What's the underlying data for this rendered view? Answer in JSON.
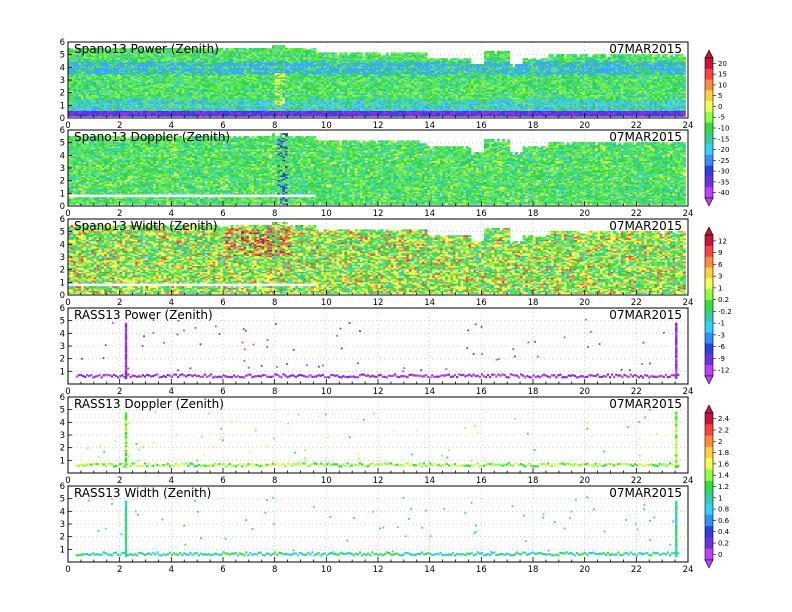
{
  "chart_data": [
    {
      "type": "heatmap",
      "title": "Spano13 Power (Zenith)",
      "date": "07MAR2015",
      "xlim": [
        0,
        24
      ],
      "ylim": [
        0,
        6
      ],
      "xticks": [
        "0",
        "2",
        "4",
        "6",
        "8",
        "10",
        "12",
        "14",
        "16",
        "18",
        "20",
        "22",
        "24"
      ],
      "yticks": [
        "0",
        "1",
        "2",
        "3",
        "4",
        "5",
        "6"
      ],
      "grid": true,
      "pattern": "profiler-power",
      "colorbar": {
        "ticks": [
          "20",
          "15",
          "10",
          "5",
          "0",
          "-5",
          "-10",
          "-15",
          "-20",
          "-25",
          "-30",
          "-35",
          "-40"
        ],
        "colors": [
          "#c8143c",
          "#ff4040",
          "#ff8c3c",
          "#ffd040",
          "#f0ff50",
          "#90ff40",
          "#30e040",
          "#30d0a0",
          "#30d0ff",
          "#3090ff",
          "#3040e0",
          "#7030e0",
          "#c040ff"
        ]
      }
    },
    {
      "type": "heatmap",
      "title": "Spano13 Doppler (Zenith)",
      "date": "07MAR2015",
      "xlim": [
        0,
        24
      ],
      "ylim": [
        0,
        6
      ],
      "xticks": [
        "0",
        "2",
        "4",
        "6",
        "8",
        "10",
        "12",
        "14",
        "16",
        "18",
        "20",
        "22",
        "24"
      ],
      "yticks": [
        "0",
        "1",
        "2",
        "3",
        "4",
        "5",
        "6"
      ],
      "grid": true,
      "pattern": "profiler-doppler"
    },
    {
      "type": "heatmap",
      "title": "Spano13 Width (Zenith)",
      "date": "07MAR2015",
      "xlim": [
        0,
        24
      ],
      "ylim": [
        0,
        6
      ],
      "xticks": [
        "0",
        "2",
        "4",
        "6",
        "8",
        "10",
        "12",
        "14",
        "16",
        "18",
        "20",
        "22",
        "24"
      ],
      "yticks": [
        "0",
        "1",
        "2",
        "3",
        "4",
        "5",
        "6"
      ],
      "grid": true,
      "pattern": "profiler-width",
      "colorbar": {
        "ticks": [
          "12",
          "9",
          "6",
          "3",
          "1",
          "0.2",
          "-0.2",
          "-1",
          "-3",
          "-6",
          "-9",
          "-12"
        ],
        "colors": [
          "#c8143c",
          "#ff4040",
          "#ff8c3c",
          "#ffd040",
          "#f0ff50",
          "#90ff40",
          "#30e040",
          "#30d0a0",
          "#30d0ff",
          "#3090ff",
          "#3040e0",
          "#7030e0",
          "#c040ff"
        ]
      }
    },
    {
      "type": "heatmap",
      "title": "RASS13 Power (Zenith)",
      "date": "07MAR2015",
      "xlim": [
        0,
        24
      ],
      "ylim": [
        0,
        6
      ],
      "xticks": [
        "0",
        "2",
        "4",
        "6",
        "8",
        "10",
        "12",
        "14",
        "16",
        "18",
        "20",
        "22",
        "24"
      ],
      "yticks": [
        "1",
        "2",
        "3",
        "4",
        "5",
        "6"
      ],
      "grid": true,
      "pattern": "rass-power"
    },
    {
      "type": "heatmap",
      "title": "RASS13 Doppler (Zenith)",
      "date": "07MAR2015",
      "xlim": [
        0,
        24
      ],
      "ylim": [
        0,
        6
      ],
      "xticks": [
        "0",
        "2",
        "4",
        "6",
        "8",
        "10",
        "12",
        "14",
        "16",
        "18",
        "20",
        "22",
        "24"
      ],
      "yticks": [
        "1",
        "2",
        "3",
        "4",
        "5",
        "6"
      ],
      "grid": true,
      "pattern": "rass-doppler",
      "colorbar": {
        "ticks": [
          "2.4",
          "2.2",
          "2",
          "1.8",
          "1.6",
          "1.4",
          "1.2",
          "1",
          "0.8",
          "0.6",
          "0.4",
          "0.2",
          "0"
        ],
        "colors": [
          "#c8143c",
          "#ff4040",
          "#ff8c3c",
          "#ffd040",
          "#f0ff50",
          "#90ff40",
          "#30e040",
          "#30d0a0",
          "#30d0ff",
          "#3090ff",
          "#3040e0",
          "#7030e0",
          "#c040ff"
        ]
      }
    },
    {
      "type": "heatmap",
      "title": "RASS13 Width (Zenith)",
      "date": "07MAR2015",
      "xlim": [
        0,
        24
      ],
      "ylim": [
        0,
        6
      ],
      "xticks": [
        "0",
        "2",
        "4",
        "6",
        "8",
        "10",
        "12",
        "14",
        "16",
        "18",
        "20",
        "22",
        "24"
      ],
      "yticks": [
        "1",
        "2",
        "3",
        "4",
        "5",
        "6"
      ],
      "grid": true,
      "pattern": "rass-width"
    }
  ]
}
